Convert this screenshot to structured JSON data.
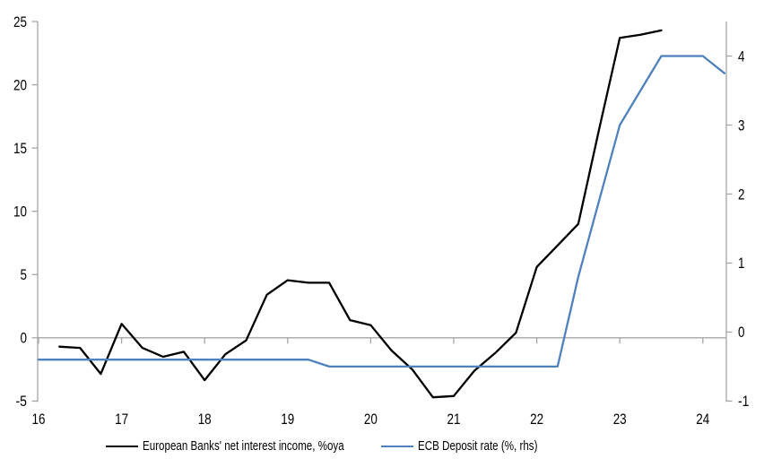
{
  "chart_data": {
    "type": "line",
    "title": "",
    "legend_position": "bottom",
    "grid": "zero-line-only",
    "x_axis": {
      "tick_labels": [
        "16",
        "17",
        "18",
        "19",
        "20",
        "21",
        "22",
        "23",
        "24"
      ],
      "tick_values": [
        16,
        17,
        18,
        19,
        20,
        21,
        22,
        23,
        24
      ],
      "min": 16,
      "max": 24.28
    },
    "left_axis": {
      "ticks": [
        25,
        20,
        15,
        10,
        5,
        0,
        -5
      ],
      "min": -5,
      "max": 25
    },
    "right_axis": {
      "ticks": [
        4,
        3,
        2,
        1,
        0,
        -1
      ],
      "min": -1,
      "max": 4.5
    },
    "series": [
      {
        "name": "European Banks' net interest income, %oya",
        "axis": "left",
        "color": "#000000",
        "x": [
          16.25,
          16.5,
          16.75,
          17.0,
          17.25,
          17.5,
          17.75,
          18.0,
          18.25,
          18.5,
          18.75,
          19.0,
          19.25,
          19.5,
          19.75,
          20.0,
          20.25,
          20.5,
          20.75,
          21.0,
          21.25,
          21.5,
          21.75,
          22.0,
          22.25,
          22.5,
          22.75,
          23.0,
          23.25,
          23.5
        ],
        "values": [
          -0.7,
          -0.8,
          -2.85,
          1.1,
          -0.8,
          -1.5,
          -1.1,
          -3.35,
          -1.3,
          -0.2,
          3.4,
          4.55,
          4.35,
          4.35,
          1.4,
          1.0,
          -1.0,
          -2.5,
          -4.7,
          -4.6,
          -2.6,
          -1.2,
          0.4,
          5.6,
          7.3,
          9.0,
          16.45,
          23.7,
          23.95,
          24.3
        ]
      },
      {
        "name": "ECB Deposit rate (%, rhs)",
        "axis": "right",
        "color": "#4E81BD",
        "x": [
          16.0,
          19.25,
          19.5,
          22.25,
          22.5,
          22.75,
          23.0,
          23.25,
          23.5,
          24.0,
          24.26
        ],
        "values": [
          -0.4,
          -0.4,
          -0.5,
          -0.5,
          0.8,
          1.9,
          3.0,
          3.5,
          4.0,
          4.0,
          3.75
        ]
      }
    ]
  },
  "colors": {
    "background": "#FFFFFF",
    "axis_line": "#A6A6A6",
    "tick_label": "#000000"
  }
}
